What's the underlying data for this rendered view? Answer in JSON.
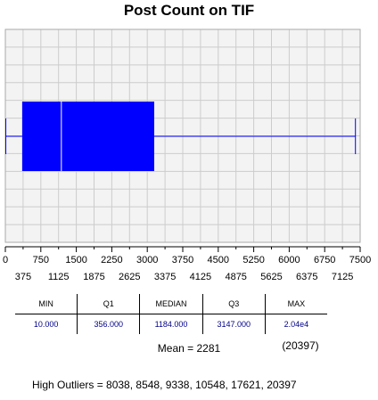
{
  "chart_data": {
    "type": "boxplot",
    "title": "Post Count on TIF",
    "xlim": [
      0,
      7500
    ],
    "major_ticks": [
      0,
      750,
      1500,
      2250,
      3000,
      3750,
      4500,
      5250,
      6000,
      6750,
      7500
    ],
    "minor_ticks": [
      375,
      1125,
      1875,
      2625,
      3375,
      4125,
      4875,
      5625,
      6375,
      7125
    ],
    "whisker_low": 10,
    "q1": 356,
    "median": 1184,
    "q3": 3147,
    "whisker_high": 7400,
    "grid": true,
    "box_color": "#0000ff",
    "plot_bg": "#f3f3f3",
    "grid_color": "#cccccc"
  },
  "stats": {
    "headers": [
      "MIN",
      "Q1",
      "MEDIAN",
      "Q3",
      "MAX"
    ],
    "values": [
      "10.000",
      "356.000",
      "1184.000",
      "3147.000",
      "2.04e4"
    ],
    "max_raw": "(20397)",
    "mean_label": "Mean = 2281"
  },
  "outliers_label": "High Outliers = 8038, 8548, 9338, 10548, 17621, 20397"
}
